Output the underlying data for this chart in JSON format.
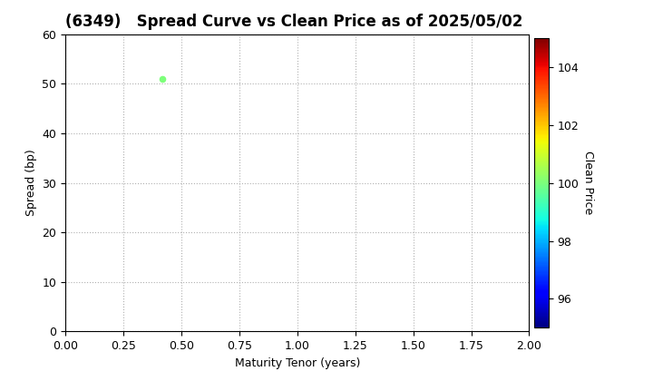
{
  "title": "(6349)   Spread Curve vs Clean Price as of 2025/05/02",
  "xlabel": "Maturity Tenor (years)",
  "ylabel": "Spread (bp)",
  "colorbar_label": "Clean Price",
  "xlim": [
    0.0,
    2.0
  ],
  "ylim": [
    0,
    60
  ],
  "xticks": [
    0.0,
    0.25,
    0.5,
    0.75,
    1.0,
    1.25,
    1.5,
    1.75,
    2.0
  ],
  "yticks": [
    0,
    10,
    20,
    30,
    40,
    50,
    60
  ],
  "colorbar_ticks": [
    96,
    98,
    100,
    102,
    104
  ],
  "colorbar_vmin": 95,
  "colorbar_vmax": 105,
  "scatter_x": [
    0.42
  ],
  "scatter_y": [
    51.0
  ],
  "scatter_price": [
    100.0
  ],
  "grid_color": "#b0b0b0",
  "background_color": "#ffffff",
  "title_fontsize": 12,
  "axis_fontsize": 9,
  "colorbar_fontsize": 9,
  "point_size": 20
}
